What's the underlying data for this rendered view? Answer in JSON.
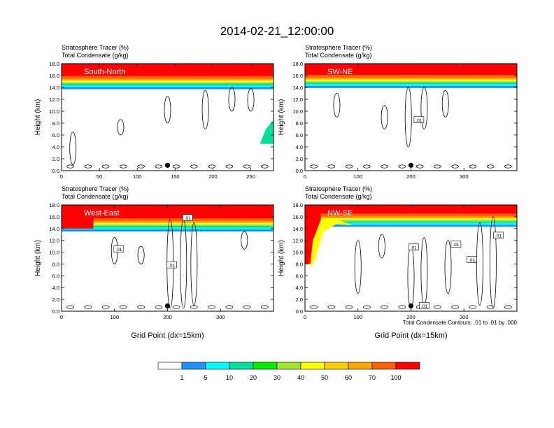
{
  "title": "2014-02-21_12:00:00",
  "colors": {
    "scale": [
      "#ffffff",
      "#1e90ff",
      "#00ffff",
      "#00e09c",
      "#00ee00",
      "#a0e632",
      "#ffff00",
      "#ffd000",
      "#ffa500",
      "#ff6000",
      "#ff0000"
    ],
    "contour": "#000000"
  },
  "chart_data": [
    {
      "type": "heatmap",
      "panel_label": "South-North",
      "header_line1": "Stratosphere Tracer   (%)",
      "header_line2": "Total Condensate   (g/kg)",
      "ylabel": "Height (km)",
      "xlabel": "",
      "xlim": [
        0,
        280
      ],
      "ylim": [
        0,
        18
      ],
      "xticks": [
        0,
        50,
        100,
        150,
        200,
        250
      ],
      "yticks": [
        "0.0",
        "2.0",
        "4.0",
        "6.0",
        "8.0",
        "10.0",
        "12.0",
        "14.0",
        "16.0",
        "18.0"
      ],
      "tropopause_km": 14.6,
      "marker_x": 140,
      "contour_labels": [],
      "footnote": ""
    },
    {
      "type": "heatmap",
      "panel_label": "SW-NE",
      "header_line1": "Stratosphere Tracer   (%)",
      "header_line2": "Total Condensate   (g/kg)",
      "ylabel": "Height (km)",
      "xlabel": "",
      "xlim": [
        0,
        400
      ],
      "ylim": [
        0,
        18
      ],
      "xticks": [
        0,
        100,
        200,
        300
      ],
      "yticks": [
        "0.0",
        "2.0",
        "4.0",
        "6.0",
        "8.0",
        "10.0",
        "12.0",
        "14.0",
        "16.0",
        "18.0"
      ],
      "tropopause_km": 14.8,
      "marker_x": 200,
      "contour_labels": [
        {
          "x": 215,
          "y": 8.5,
          "text": ".01"
        }
      ],
      "footnote": ""
    },
    {
      "type": "heatmap",
      "panel_label": "West-East",
      "header_line1": "Stratosphere Tracer   (%)",
      "header_line2": "Total Condensate   (g/kg)",
      "ylabel": "Height (km)",
      "xlabel": "Grid Point (dx=15km)",
      "xlim": [
        0,
        400
      ],
      "ylim": [
        0,
        18
      ],
      "xticks": [
        0,
        100,
        200,
        300
      ],
      "yticks": [
        "0.0",
        "2.0",
        "4.0",
        "6.0",
        "8.0",
        "10.0",
        "12.0",
        "14.0",
        "16.0",
        "18.0"
      ],
      "tropopause_km": 14.4,
      "marker_x": 200,
      "contour_labels": [
        {
          "x": 108,
          "y": 10.5,
          "text": ".01"
        },
        {
          "x": 208,
          "y": 7.8,
          "text": ".01"
        },
        {
          "x": 238,
          "y": 15.8,
          "text": ".01"
        }
      ],
      "footnote": ""
    },
    {
      "type": "heatmap",
      "panel_label": "NW-SE",
      "header_line1": "Stratosphere Tracer   (%)",
      "header_line2": "Total Condensate   (g/kg)",
      "ylabel": "Height (km)",
      "xlabel": "Grid Point (dx=15km)",
      "xlim": [
        0,
        400
      ],
      "ylim": [
        0,
        18
      ],
      "xticks": [
        0,
        100,
        200,
        300
      ],
      "yticks": [
        "0.0",
        "2.0",
        "4.0",
        "6.0",
        "8.0",
        "10.0",
        "12.0",
        "14.0",
        "16.0",
        "18.0"
      ],
      "tropopause_km": 15.2,
      "marker_x": 200,
      "contour_labels": [
        {
          "x": 205,
          "y": 10.8,
          "text": ".01"
        },
        {
          "x": 285,
          "y": 11.3,
          "text": ".01"
        },
        {
          "x": 315,
          "y": 8.7,
          "text": ".01"
        },
        {
          "x": 365,
          "y": 12.8,
          "text": ".01"
        },
        {
          "x": 225,
          "y": 0.9,
          "text": ".01"
        }
      ],
      "footnote": "Total Condensate Contours: .01 to .01 by .000"
    }
  ],
  "colorbar": {
    "labels": [
      "1",
      "5",
      "10",
      "20",
      "30",
      "40",
      "50",
      "60",
      "70",
      "100"
    ]
  }
}
